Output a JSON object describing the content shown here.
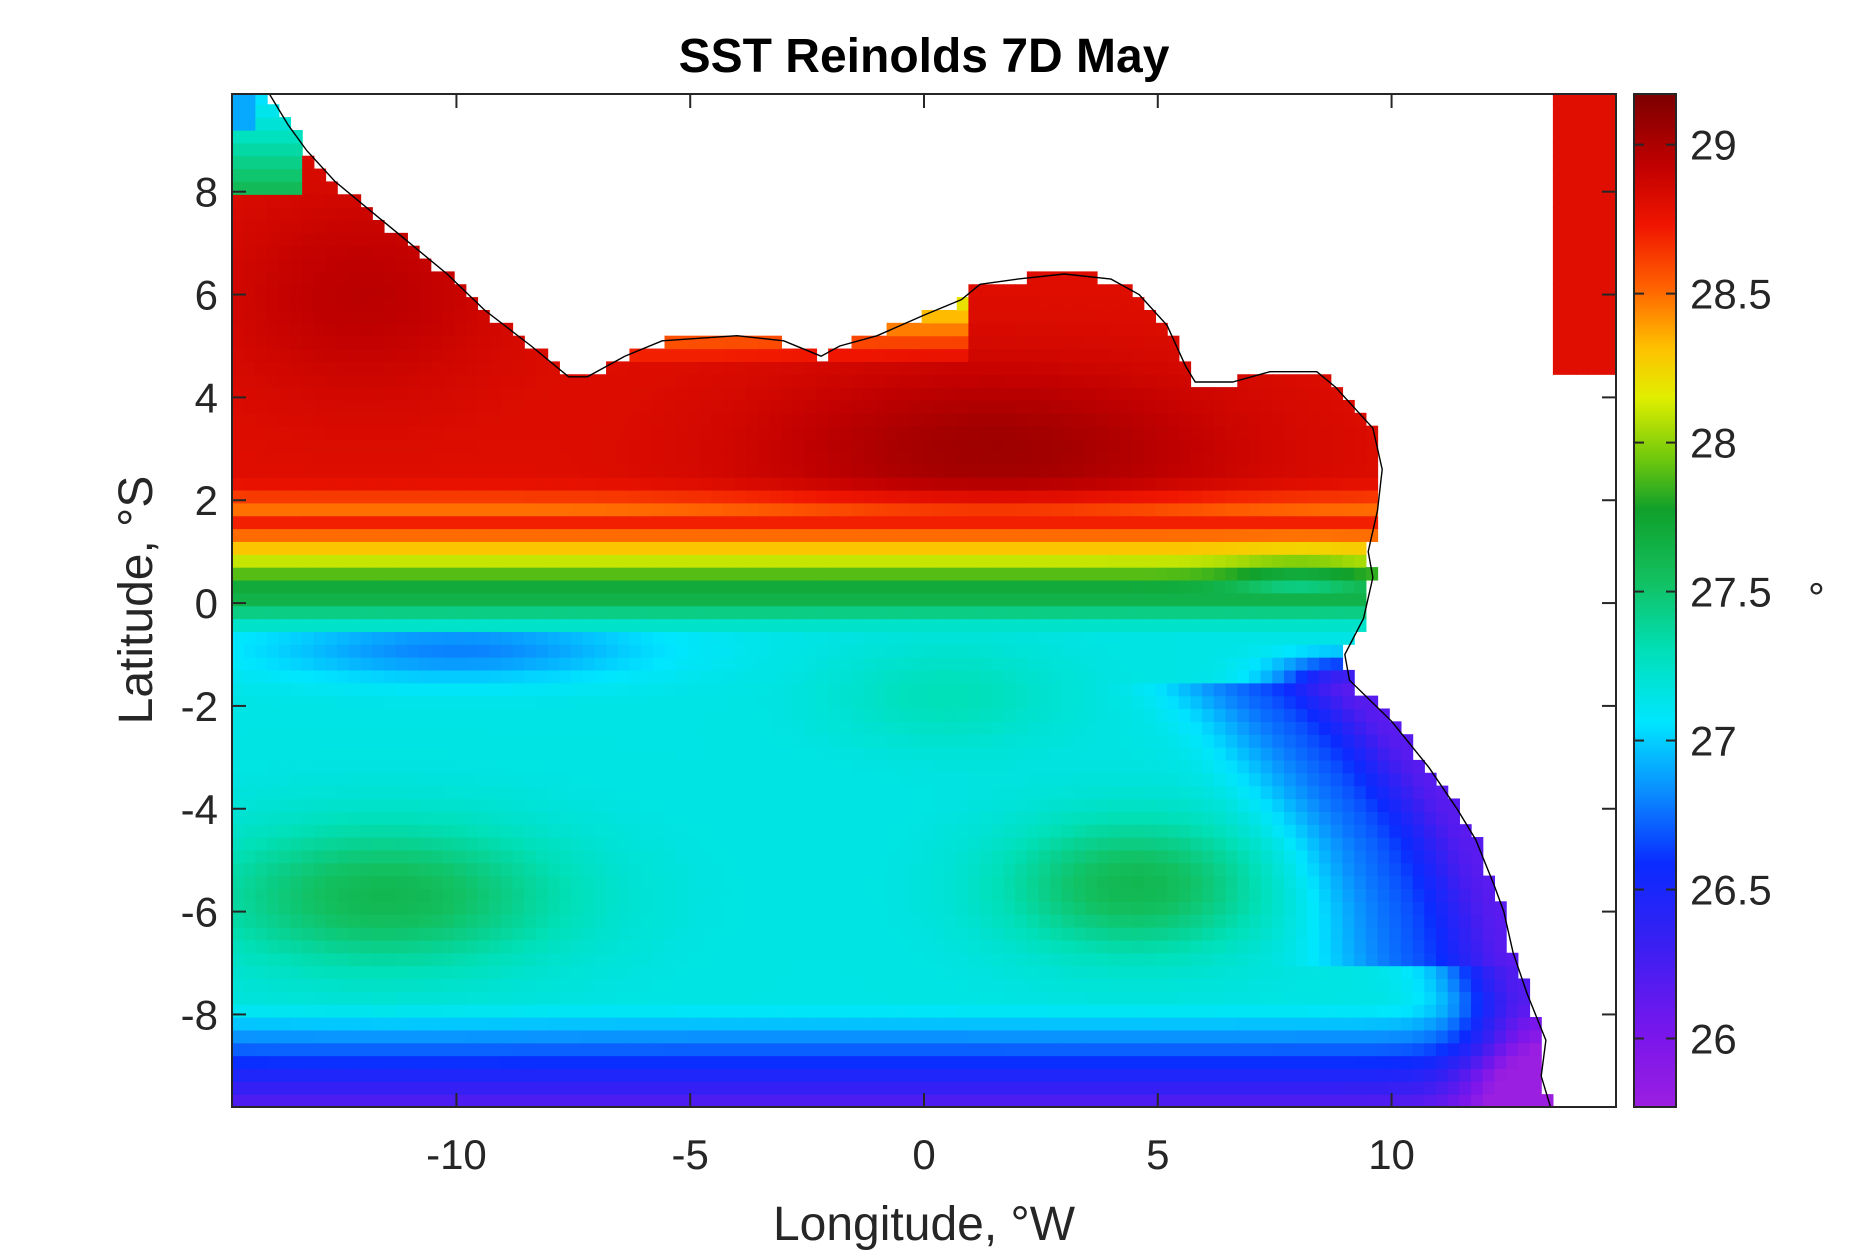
{
  "chart_data": {
    "type": "heatmap",
    "title": "SST Reinolds 7D May",
    "xlabel": "Longitude, °W",
    "ylabel": "Latitude, °S",
    "xlim": [
      -14.8,
      14.8
    ],
    "ylim": [
      -9.8,
      9.9
    ],
    "xticks": [
      -10,
      -5,
      0,
      5,
      10
    ],
    "xtick_labels": [
      "-10",
      "-5",
      "0",
      "5",
      "10"
    ],
    "yticks": [
      -8,
      -6,
      -4,
      -2,
      0,
      2,
      4,
      6,
      8
    ],
    "ytick_labels": [
      "-8",
      "-6",
      "-4",
      "-2",
      "0",
      "2",
      "4",
      "6",
      "8"
    ],
    "grid": false,
    "colorbar": {
      "range": [
        25.77,
        29.17
      ],
      "ticks": [
        26,
        26.5,
        27,
        27.5,
        28,
        28.5,
        29
      ],
      "tick_labels": [
        "26",
        "26.5",
        "27",
        "27.5",
        "28",
        "28.5",
        "29"
      ],
      "label": "°",
      "colormap": "jet-like (purple-blue-cyan-green-yellow-red-darkred)"
    },
    "land_color": "#ffffff",
    "coastline_color": "#000000",
    "features": [
      {
        "region": "north of 1°",
        "sst": 28.9,
        "pattern": "warm red band along Gulf of Guinea coast, max ~29.1 near 2°E, 3°"
      },
      {
        "region": "equator 0–1°",
        "sst": 27.9,
        "pattern": "narrow yellow/green front along equator"
      },
      {
        "region": "-1° band west",
        "sst": 26.8,
        "pattern": "cool blue tongue near 12°W–6°W"
      },
      {
        "region": "-2° to -5° center",
        "sst": 27.2,
        "pattern": "cyan X-shaped region centered near 2°W, -4°"
      },
      {
        "region": "-6° west and east",
        "sst": 27.6,
        "pattern": "green pockets near 12°W and 5°E"
      },
      {
        "region": "south of -8.5°",
        "sst": 26.2,
        "pattern": "purple band along southern edge"
      },
      {
        "region": "Angola coast 9°E–13°E",
        "sst": 26.1,
        "pattern": "purple/blue coastal upwelling strip"
      }
    ]
  }
}
